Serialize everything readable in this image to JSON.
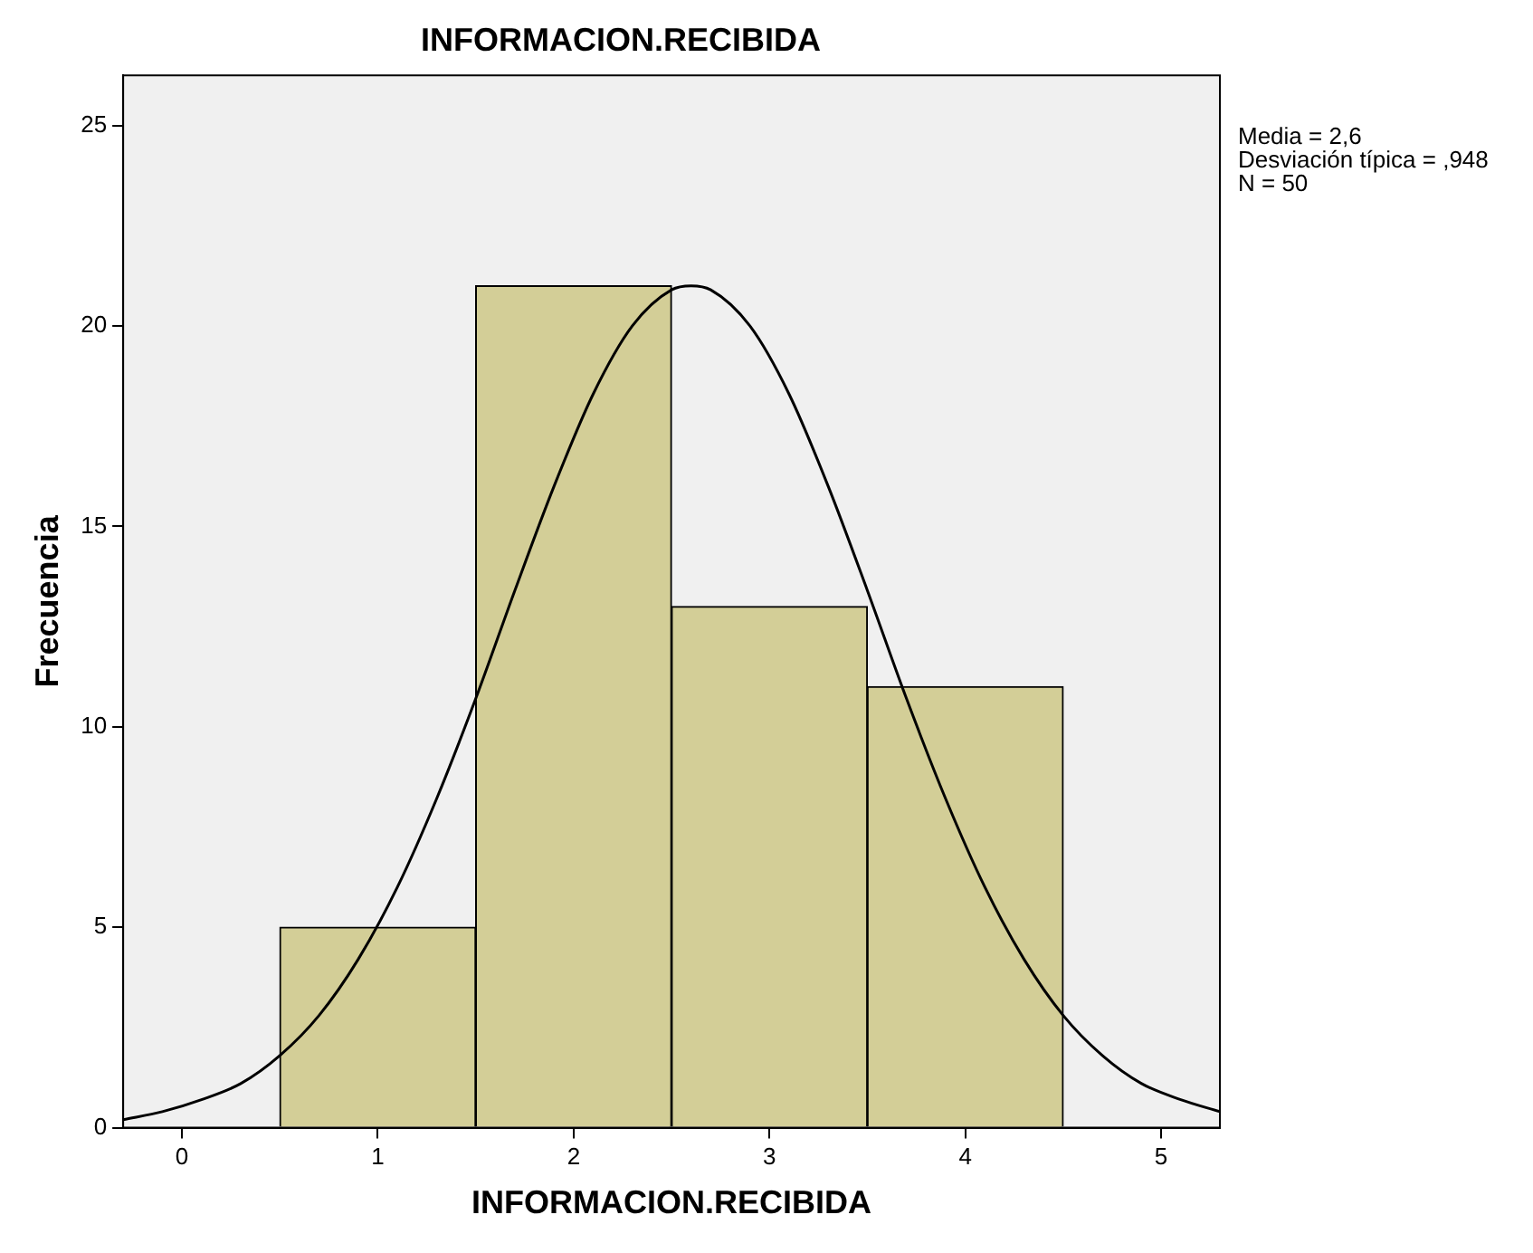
{
  "chart_data": {
    "type": "histogram",
    "title": "INFORMACION.RECIBIDA",
    "xlabel": "INFORMACION.RECIBIDA",
    "ylabel": "Frecuencia",
    "bins": [
      0.5,
      1.5,
      2.5,
      3.5,
      4.5
    ],
    "values": [
      5,
      21,
      13,
      11
    ],
    "color": "#d3ce97",
    "series": [
      {
        "type": "line",
        "color": "#000000",
        "x": [
          -0.3,
          -0.1,
          0.1,
          0.3,
          0.5,
          0.7,
          0.9,
          1.1,
          1.3,
          1.5,
          1.7,
          1.9,
          2.1,
          2.3,
          2.5,
          2.6,
          2.7,
          2.9,
          3.1,
          3.3,
          3.5,
          3.7,
          3.9,
          4.1,
          4.3,
          4.5,
          4.7,
          4.9,
          5.1,
          5.3
        ],
        "values": [
          0.2,
          0.4,
          0.7,
          1.1,
          1.8,
          2.8,
          4.2,
          6.0,
          8.2,
          10.7,
          13.4,
          16.0,
          18.3,
          20.0,
          20.9,
          21.0,
          20.9,
          20.0,
          18.3,
          16.0,
          13.4,
          10.7,
          8.2,
          6.0,
          4.2,
          2.8,
          1.8,
          1.1,
          0.7,
          0.4
        ]
      }
    ],
    "xlim": [
      -0.3,
      5.3
    ],
    "xticks": [
      0,
      1,
      2,
      3,
      4,
      5
    ],
    "ylim": [
      0,
      26.25
    ],
    "yticks": [
      0,
      5,
      10,
      15,
      20,
      25
    ],
    "annotations": [
      "Media = 2,6",
      "Desviación típica = ,948",
      "N = 50"
    ],
    "marker": "none",
    "legend": false
  }
}
